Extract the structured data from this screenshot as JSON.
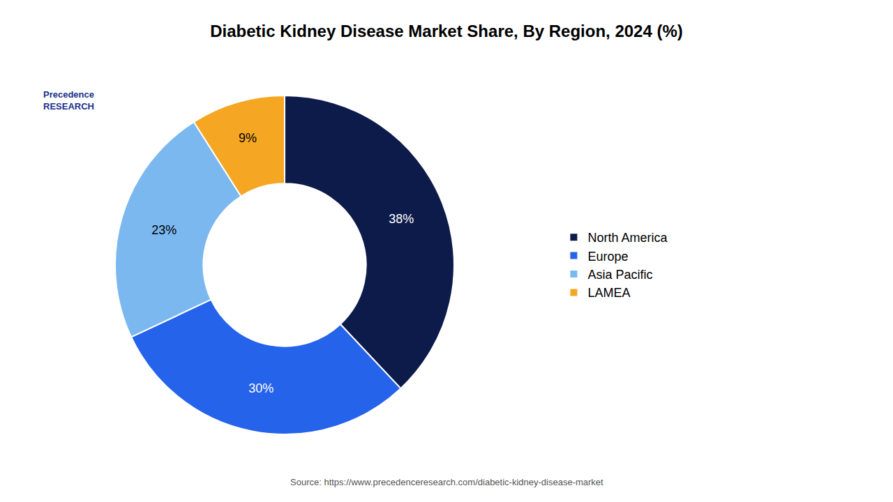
{
  "chart_data": {
    "type": "donut",
    "title": "Diabetic Kidney Disease Market Share, By Region, 2024 (%)",
    "categories": [
      "North America",
      "Europe",
      "Asia Pacific",
      "LAMEA"
    ],
    "values": [
      38,
      30,
      23,
      9
    ],
    "value_labels": [
      "38%",
      "30%",
      "23%",
      "9%"
    ],
    "colors": [
      "#0d1b4b",
      "#2563eb",
      "#7cb8f0",
      "#f5a623"
    ],
    "data_labels": true,
    "legend": "right",
    "annotations": [
      "Source: https://www.precedenceresearch.com/diabetic-kidney-disease-market",
      "Precedence\nRESEARCH"
    ]
  }
}
